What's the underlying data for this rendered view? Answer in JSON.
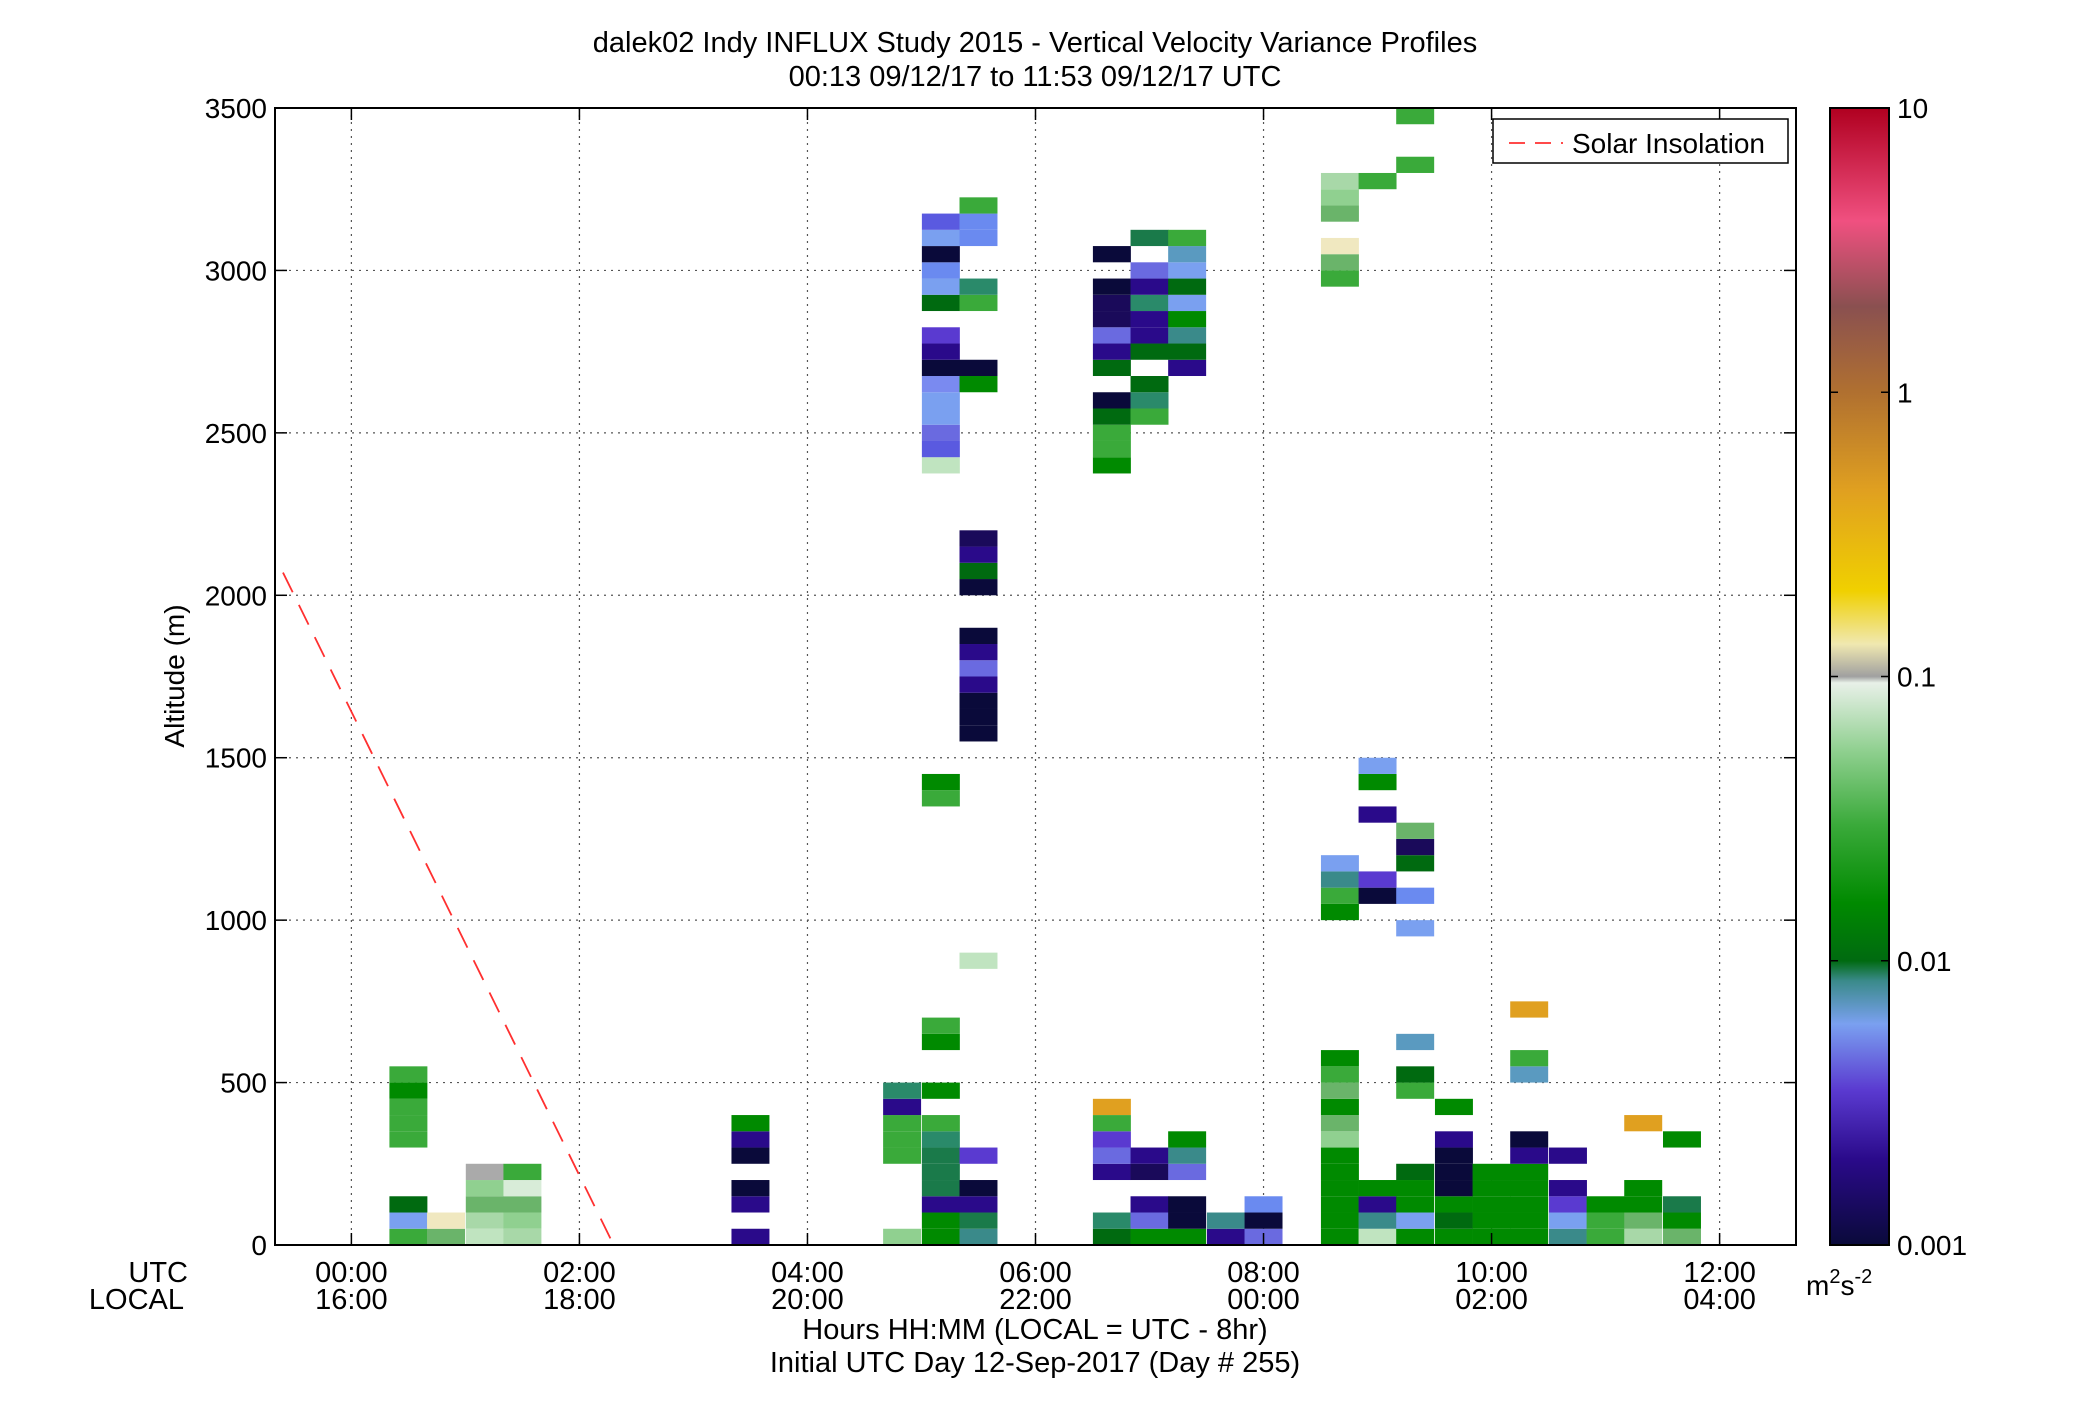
{
  "chart_data": {
    "type": "heatmap",
    "title": "dalek02 Indy INFLUX Study 2015 - Vertical Velocity Variance Profiles",
    "subtitle": "00:13 09/12/17 to 11:53 09/12/17  UTC",
    "ylabel": "Altitude (m)",
    "xlabel": "Hours HH:MM  (LOCAL = UTC - 8hr)",
    "xlabel2": "Initial UTC Day 12-Sep-2017 (Day # 255)",
    "x_row_labels": [
      "UTC",
      "LOCAL"
    ],
    "xlim_hours": [
      -0.67,
      12.67
    ],
    "ylim": [
      0,
      3500
    ],
    "x_ticks": [
      {
        "h": 0,
        "utc": "00:00",
        "local": "16:00"
      },
      {
        "h": 2,
        "utc": "02:00",
        "local": "18:00"
      },
      {
        "h": 4,
        "utc": "04:00",
        "local": "20:00"
      },
      {
        "h": 6,
        "utc": "06:00",
        "local": "22:00"
      },
      {
        "h": 8,
        "utc": "08:00",
        "local": "00:00"
      },
      {
        "h": 10,
        "utc": "10:00",
        "local": "02:00"
      },
      {
        "h": 12,
        "utc": "12:00",
        "local": "04:00"
      }
    ],
    "y_ticks": [
      0,
      500,
      1000,
      1500,
      2000,
      2500,
      3000,
      3500
    ],
    "grid": true,
    "colorbar": {
      "scale": "log",
      "range": [
        0.001,
        10
      ],
      "tick_values": [
        0.001,
        0.01,
        0.1,
        1,
        10
      ],
      "tick_labels": [
        "0.001",
        "0.01",
        "0.1",
        "1",
        "10"
      ],
      "units": "m",
      "units_sup1": "2",
      "units_mid": "s",
      "units_sup2": "-2",
      "stops": [
        {
          "v": 0.001,
          "color": "#0a0a3a"
        },
        {
          "v": 0.002,
          "color": "#2a0a8a"
        },
        {
          "v": 0.0035,
          "color": "#5a3ad0"
        },
        {
          "v": 0.006,
          "color": "#7aa0f0"
        },
        {
          "v": 0.0085,
          "color": "#3a8a8a"
        },
        {
          "v": 0.01,
          "color": "#006a10"
        },
        {
          "v": 0.016,
          "color": "#008a00"
        },
        {
          "v": 0.03,
          "color": "#3aaa3a"
        },
        {
          "v": 0.055,
          "color": "#90d090"
        },
        {
          "v": 0.095,
          "color": "#e8f0e8"
        },
        {
          "v": 0.1,
          "color": "#a0a0a0"
        },
        {
          "v": 0.13,
          "color": "#f0e8b0"
        },
        {
          "v": 0.2,
          "color": "#f0d000"
        },
        {
          "v": 0.45,
          "color": "#e0a020"
        },
        {
          "v": 1.0,
          "color": "#b07030"
        },
        {
          "v": 2.0,
          "color": "#8a5050"
        },
        {
          "v": 4.0,
          "color": "#f05080"
        },
        {
          "v": 10,
          "color": "#b00020"
        }
      ]
    },
    "legend": {
      "label": "Solar Insolation",
      "placement": "top-right",
      "color": "#ff3030"
    },
    "solar_line": {
      "x": [
        -0.6,
        2.3
      ],
      "y": [
        2070,
        0
      ]
    },
    "cell_width_hours": 0.333,
    "cell_height_m": 50,
    "columns": [
      {
        "t": 0.5,
        "cells": [
          [
            25,
            "#3aaa3a"
          ],
          [
            75,
            "#7aa0f0"
          ],
          [
            125,
            "#006a10"
          ],
          [
            325,
            "#3aaa3a"
          ],
          [
            375,
            "#3aaa3a"
          ],
          [
            425,
            "#3aaa3a"
          ],
          [
            475,
            "#008a00"
          ],
          [
            525,
            "#3aaa3a"
          ]
        ]
      },
      {
        "t": 0.83,
        "cells": [
          [
            25,
            "#6ab46a"
          ],
          [
            75,
            "#f0e8c0"
          ]
        ]
      },
      {
        "t": 1.17,
        "cells": [
          [
            25,
            "#c0e4c0"
          ],
          [
            75,
            "#a8d8a8"
          ],
          [
            125,
            "#6ab46a"
          ],
          [
            175,
            "#90d090"
          ],
          [
            225,
            "#aaaaaa"
          ]
        ]
      },
      {
        "t": 1.5,
        "cells": [
          [
            25,
            "#a8d8a8"
          ],
          [
            75,
            "#90d090"
          ],
          [
            125,
            "#6ab46a"
          ],
          [
            175,
            "#d8ecd8"
          ],
          [
            225,
            "#3aaa3a"
          ]
        ]
      },
      {
        "t": 3.5,
        "cells": [
          [
            25,
            "#2a0a8a"
          ],
          [
            125,
            "#2a0a8a"
          ],
          [
            175,
            "#0a0a3a"
          ],
          [
            275,
            "#0a0a3a"
          ],
          [
            325,
            "#2a0a8a"
          ],
          [
            375,
            "#008a00"
          ]
        ]
      },
      {
        "t": 4.83,
        "cells": [
          [
            25,
            "#90d090"
          ],
          [
            275,
            "#3aaa3a"
          ],
          [
            325,
            "#3aaa3a"
          ],
          [
            375,
            "#3aaa3a"
          ],
          [
            425,
            "#2a0a8a"
          ],
          [
            475,
            "#2a8a6a"
          ]
        ]
      },
      {
        "t": 5.17,
        "cells": [
          [
            25,
            "#008a00"
          ],
          [
            75,
            "#008a00"
          ],
          [
            125,
            "#2a0a8a"
          ],
          [
            175,
            "#1a7a4a"
          ],
          [
            225,
            "#1a7a4a"
          ],
          [
            275,
            "#1a7a4a"
          ],
          [
            325,
            "#2a8a6a"
          ],
          [
            375,
            "#3aaa3a"
          ],
          [
            475,
            "#008a00"
          ],
          [
            625,
            "#008a00"
          ],
          [
            675,
            "#3aaa3a"
          ],
          [
            1375,
            "#3aaa3a"
          ],
          [
            1425,
            "#008a00"
          ],
          [
            2400,
            "#c0e4c0"
          ],
          [
            2450,
            "#5a5ae0"
          ],
          [
            2500,
            "#6a6ae0"
          ],
          [
            2550,
            "#7aa0f0"
          ],
          [
            2600,
            "#7aa0f0"
          ],
          [
            2650,
            "#7a8af0"
          ],
          [
            2700,
            "#0a0a3a"
          ],
          [
            2750,
            "#2a0a8a"
          ],
          [
            2800,
            "#5a3ad0"
          ],
          [
            2900,
            "#006a10"
          ],
          [
            2950,
            "#7aa0f0"
          ],
          [
            3000,
            "#6a8af0"
          ],
          [
            3050,
            "#0a0a3a"
          ],
          [
            3100,
            "#7aa0f0"
          ],
          [
            3150,
            "#5a5ae0"
          ]
        ]
      },
      {
        "t": 5.5,
        "cells": [
          [
            25,
            "#3a8a8a"
          ],
          [
            75,
            "#1a7a4a"
          ],
          [
            125,
            "#2a0a8a"
          ],
          [
            175,
            "#0a0a3a"
          ],
          [
            275,
            "#5a3ad0"
          ],
          [
            875,
            "#c0e4c0"
          ],
          [
            1575,
            "#0a0a3a"
          ],
          [
            1625,
            "#0a0a3a"
          ],
          [
            1675,
            "#0a0a3a"
          ],
          [
            1725,
            "#2a0a8a"
          ],
          [
            1775,
            "#6a6ae0"
          ],
          [
            1825,
            "#2a0a8a"
          ],
          [
            1875,
            "#0a0a3a"
          ],
          [
            2025,
            "#0a0a3a"
          ],
          [
            2075,
            "#006a10"
          ],
          [
            2125,
            "#2a0a8a"
          ],
          [
            2175,
            "#1a0a5a"
          ],
          [
            2650,
            "#008a00"
          ],
          [
            2700,
            "#0a0a3a"
          ],
          [
            2900,
            "#3aaa3a"
          ],
          [
            2950,
            "#2a8a6a"
          ],
          [
            3100,
            "#6a8af0"
          ],
          [
            3150,
            "#6a8af0"
          ],
          [
            3200,
            "#3aaa3a"
          ]
        ]
      },
      {
        "t": 6.67,
        "cells": [
          [
            25,
            "#006a10"
          ],
          [
            75,
            "#2a8a6a"
          ],
          [
            225,
            "#2a0a8a"
          ],
          [
            275,
            "#6a6ae0"
          ],
          [
            325,
            "#5a3ad0"
          ],
          [
            375,
            "#3aaa3a"
          ],
          [
            425,
            "#e0a020"
          ],
          [
            2400,
            "#008a00"
          ],
          [
            2450,
            "#3aaa3a"
          ],
          [
            2500,
            "#3aaa3a"
          ],
          [
            2550,
            "#006a10"
          ],
          [
            2600,
            "#0a0a3a"
          ],
          [
            2700,
            "#006a10"
          ],
          [
            2750,
            "#2a0a8a"
          ],
          [
            2800,
            "#6a6ae0"
          ],
          [
            2850,
            "#1a0a5a"
          ],
          [
            2900,
            "#1a0a5a"
          ],
          [
            2950,
            "#0a0a3a"
          ],
          [
            3050,
            "#0a0a3a"
          ]
        ]
      },
      {
        "t": 7.0,
        "cells": [
          [
            25,
            "#008a00"
          ],
          [
            75,
            "#6a6ae0"
          ],
          [
            125,
            "#2a0a8a"
          ],
          [
            225,
            "#1a0a5a"
          ],
          [
            275,
            "#2a0a8a"
          ],
          [
            2550,
            "#3aaa3a"
          ],
          [
            2600,
            "#2a8a6a"
          ],
          [
            2650,
            "#006a10"
          ],
          [
            2750,
            "#006a10"
          ],
          [
            2800,
            "#2a0a8a"
          ],
          [
            2850,
            "#2a0a8a"
          ],
          [
            2900,
            "#2a8a6a"
          ],
          [
            2950,
            "#2a0a8a"
          ],
          [
            3000,
            "#6a6ae0"
          ],
          [
            3100,
            "#1a7a4a"
          ]
        ]
      },
      {
        "t": 7.33,
        "cells": [
          [
            25,
            "#008a00"
          ],
          [
            75,
            "#0a0a3a"
          ],
          [
            125,
            "#0a0a3a"
          ],
          [
            225,
            "#6a6ae0"
          ],
          [
            275,
            "#3a8a8a"
          ],
          [
            325,
            "#008a00"
          ],
          [
            2700,
            "#2a0a8a"
          ],
          [
            2750,
            "#006a10"
          ],
          [
            2800,
            "#3a8a8a"
          ],
          [
            2850,
            "#008a00"
          ],
          [
            2900,
            "#7aa0f0"
          ],
          [
            2950,
            "#006a10"
          ],
          [
            3000,
            "#7aa0f0"
          ],
          [
            3050,
            "#5a9ac0"
          ],
          [
            3100,
            "#3aaa3a"
          ]
        ]
      },
      {
        "t": 7.67,
        "cells": [
          [
            25,
            "#2a0a8a"
          ],
          [
            75,
            "#3a8a8a"
          ]
        ]
      },
      {
        "t": 8.0,
        "cells": [
          [
            25,
            "#6a6ae0"
          ],
          [
            75,
            "#0a0a3a"
          ],
          [
            125,
            "#6a8af0"
          ]
        ]
      },
      {
        "t": 8.67,
        "cells": [
          [
            25,
            "#008a00"
          ],
          [
            75,
            "#008a00"
          ],
          [
            125,
            "#008a00"
          ],
          [
            175,
            "#008a00"
          ],
          [
            225,
            "#008a00"
          ],
          [
            275,
            "#008a00"
          ],
          [
            325,
            "#90d090"
          ],
          [
            375,
            "#6ab46a"
          ],
          [
            425,
            "#008a00"
          ],
          [
            475,
            "#6ab46a"
          ],
          [
            525,
            "#3aaa3a"
          ],
          [
            575,
            "#008a00"
          ],
          [
            1025,
            "#008a00"
          ],
          [
            1075,
            "#3aaa3a"
          ],
          [
            1125,
            "#3a8a8a"
          ],
          [
            1175,
            "#7aa0f0"
          ],
          [
            2975,
            "#3aaa3a"
          ],
          [
            3025,
            "#6ab46a"
          ],
          [
            3075,
            "#f0e8c0"
          ],
          [
            3175,
            "#6ab46a"
          ],
          [
            3225,
            "#90d090"
          ],
          [
            3275,
            "#a8d8a8"
          ]
        ]
      },
      {
        "t": 9.0,
        "cells": [
          [
            25,
            "#c0e4c0"
          ],
          [
            75,
            "#3a8a8a"
          ],
          [
            125,
            "#2a0a8a"
          ],
          [
            175,
            "#008a00"
          ],
          [
            1075,
            "#0a0a3a"
          ],
          [
            1125,
            "#5a3ad0"
          ],
          [
            1325,
            "#2a0a8a"
          ],
          [
            1425,
            "#008a00"
          ],
          [
            1475,
            "#7aa0f0"
          ],
          [
            3275,
            "#3aaa3a"
          ]
        ]
      },
      {
        "t": 9.33,
        "cells": [
          [
            25,
            "#008a00"
          ],
          [
            75,
            "#7aa0f0"
          ],
          [
            125,
            "#008a00"
          ],
          [
            175,
            "#008a00"
          ],
          [
            225,
            "#006a10"
          ],
          [
            475,
            "#3aaa3a"
          ],
          [
            525,
            "#006a10"
          ],
          [
            625,
            "#5a9ac0"
          ],
          [
            975,
            "#7aa0f0"
          ],
          [
            1075,
            "#6a8af0"
          ],
          [
            1175,
            "#006a10"
          ],
          [
            1225,
            "#1a0a5a"
          ],
          [
            1275,
            "#6ab46a"
          ],
          [
            3325,
            "#3aaa3a"
          ],
          [
            3475,
            "#3aaa3a"
          ]
        ]
      },
      {
        "t": 9.67,
        "cells": [
          [
            25,
            "#008a00"
          ],
          [
            75,
            "#006a10"
          ],
          [
            125,
            "#008a00"
          ],
          [
            175,
            "#0a0a3a"
          ],
          [
            225,
            "#0a0a3a"
          ],
          [
            275,
            "#0a0a3a"
          ],
          [
            325,
            "#2a0a8a"
          ],
          [
            425,
            "#008a00"
          ]
        ]
      },
      {
        "t": 10.0,
        "cells": [
          [
            25,
            "#008a00"
          ],
          [
            75,
            "#008a00"
          ],
          [
            125,
            "#008a00"
          ],
          [
            175,
            "#008a00"
          ],
          [
            225,
            "#008a00"
          ]
        ]
      },
      {
        "t": 10.33,
        "cells": [
          [
            25,
            "#008a00"
          ],
          [
            75,
            "#008a00"
          ],
          [
            125,
            "#008a00"
          ],
          [
            175,
            "#008a00"
          ],
          [
            225,
            "#008a00"
          ],
          [
            275,
            "#2a0a8a"
          ],
          [
            325,
            "#0a0a3a"
          ],
          [
            525,
            "#5a9ac0"
          ],
          [
            575,
            "#3aaa3a"
          ],
          [
            725,
            "#e0a020"
          ]
        ]
      },
      {
        "t": 10.67,
        "cells": [
          [
            25,
            "#3a8a8a"
          ],
          [
            75,
            "#7aa0f0"
          ],
          [
            125,
            "#5a3ad0"
          ],
          [
            175,
            "#2a0a8a"
          ],
          [
            275,
            "#2a0a8a"
          ]
        ]
      },
      {
        "t": 11.0,
        "cells": [
          [
            25,
            "#3aaa3a"
          ],
          [
            75,
            "#3aaa3a"
          ],
          [
            125,
            "#008a00"
          ]
        ]
      },
      {
        "t": 11.33,
        "cells": [
          [
            25,
            "#a8d8a8"
          ],
          [
            75,
            "#6ab46a"
          ],
          [
            125,
            "#008a00"
          ],
          [
            175,
            "#008a00"
          ],
          [
            375,
            "#e0a020"
          ]
        ]
      },
      {
        "t": 11.67,
        "cells": [
          [
            25,
            "#6ab46a"
          ],
          [
            75,
            "#008a00"
          ],
          [
            125,
            "#1a7a4a"
          ],
          [
            325,
            "#008a00"
          ]
        ]
      }
    ]
  }
}
